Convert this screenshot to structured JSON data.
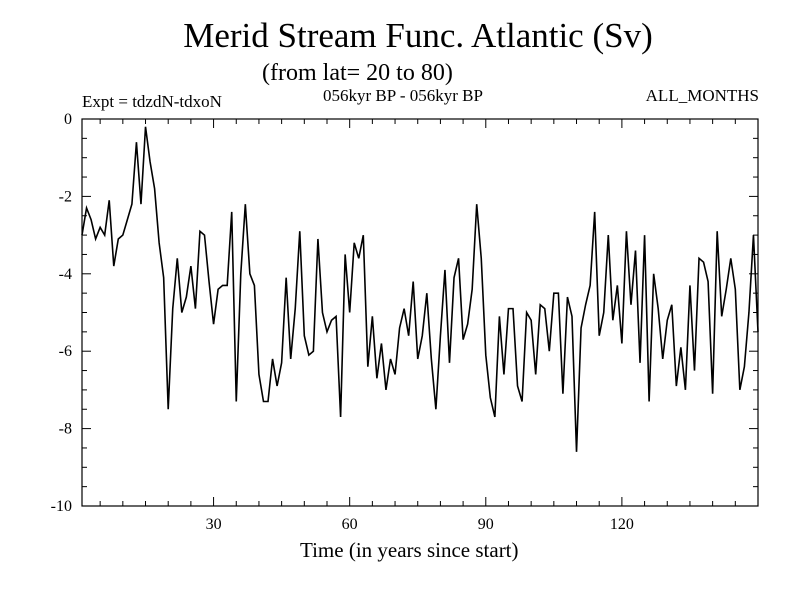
{
  "chart_data": {
    "type": "line",
    "title": "Merid Stream Func. Atlantic (Sv)",
    "subtitle": "(from lat= 20 to 80)",
    "expt_label": "Expt = tdzdN-tdxoN",
    "period_label": "056kyr BP - 056kyr BP",
    "months_label": "ALL_MONTHS",
    "xlabel": "Time (in years since start)",
    "ylabel": "",
    "xlim": [
      1,
      150
    ],
    "ylim": [
      -10,
      0
    ],
    "xticks": [
      30,
      60,
      90,
      120
    ],
    "yticks": [
      0,
      -2,
      -4,
      -6,
      -8,
      -10
    ],
    "ytick_labels": [
      "0",
      "-2",
      "-4",
      "-6",
      "-8",
      "-10"
    ],
    "grid": false,
    "line_color": "#000000",
    "series": [
      {
        "name": "Merid Stream Func. Atlantic",
        "x_start": 1,
        "x_step": 1,
        "values": [
          -3.0,
          -2.3,
          -2.6,
          -3.1,
          -2.8,
          -3.0,
          -2.1,
          -3.8,
          -3.1,
          -3.0,
          -2.6,
          -2.2,
          -0.6,
          -2.2,
          -0.2,
          -1.1,
          -1.8,
          -3.2,
          -4.1,
          -7.5,
          -4.9,
          -3.6,
          -5.0,
          -4.6,
          -3.8,
          -4.9,
          -2.9,
          -3.0,
          -4.2,
          -5.3,
          -4.4,
          -4.3,
          -4.3,
          -2.4,
          -7.3,
          -4.0,
          -2.2,
          -4.0,
          -4.3,
          -6.6,
          -7.3,
          -7.3,
          -6.2,
          -6.9,
          -6.3,
          -4.1,
          -6.2,
          -4.9,
          -2.9,
          -5.6,
          -6.1,
          -6.0,
          -3.1,
          -5.0,
          -5.5,
          -5.2,
          -5.1,
          -7.7,
          -3.5,
          -5.0,
          -3.2,
          -3.6,
          -3.0,
          -6.4,
          -5.1,
          -6.7,
          -5.8,
          -7.0,
          -6.2,
          -6.6,
          -5.4,
          -4.9,
          -5.6,
          -4.2,
          -6.2,
          -5.6,
          -4.5,
          -6.2,
          -7.5,
          -5.6,
          -3.9,
          -6.3,
          -4.1,
          -3.6,
          -5.7,
          -5.3,
          -4.4,
          -2.2,
          -3.6,
          -6.1,
          -7.2,
          -7.7,
          -5.1,
          -6.6,
          -4.9,
          -4.9,
          -6.9,
          -7.3,
          -5.0,
          -5.2,
          -6.6,
          -4.8,
          -4.9,
          -6.0,
          -4.5,
          -4.5,
          -7.1,
          -4.6,
          -5.1,
          -8.6,
          -5.4,
          -4.8,
          -4.3,
          -2.4,
          -5.6,
          -5.0,
          -3.0,
          -5.2,
          -4.3,
          -5.8,
          -2.9,
          -4.8,
          -3.4,
          -6.3,
          -3.0,
          -7.3,
          -4.0,
          -4.9,
          -6.2,
          -5.2,
          -4.8,
          -6.9,
          -5.9,
          -7.0,
          -4.3,
          -6.5,
          -3.6,
          -3.7,
          -4.2,
          -7.1,
          -2.9,
          -5.1,
          -4.4,
          -3.6,
          -4.4,
          -7.0,
          -6.4,
          -5.0,
          -3.0,
          -5.5
        ]
      }
    ]
  }
}
